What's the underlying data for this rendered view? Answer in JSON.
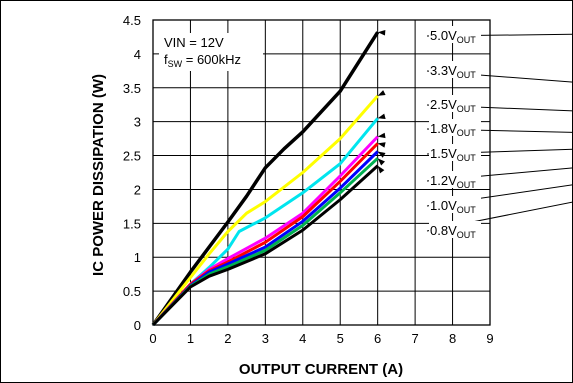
{
  "chart_data": {
    "type": "line",
    "xlabel": "OUTPUT CURRENT (A)",
    "ylabel": "IC POWER DISSIPATION (W)",
    "xlim": [
      0,
      9
    ],
    "ylim": [
      0,
      4.5
    ],
    "x_ticks": [
      "0",
      "1",
      "2",
      "3",
      "4",
      "5",
      "6",
      "7",
      "8",
      "9"
    ],
    "y_ticks": [
      "0",
      "0.5",
      "1",
      "1.5",
      "2",
      "2.5",
      "3",
      "3.5",
      "4",
      "4.5"
    ],
    "grid": true,
    "annotation": {
      "line1": "VIN = 12V",
      "line2_main": "f",
      "line2_sub": "SW",
      "line2_rest": " = 600kHz"
    },
    "series": [
      {
        "name": "5.0V",
        "sub": "OUT",
        "color": "#000000",
        "x": [
          0,
          1,
          2,
          2.5,
          3,
          3.5,
          4,
          5,
          6
        ],
        "y": [
          0,
          0.78,
          1.52,
          1.9,
          2.32,
          2.6,
          2.85,
          3.45,
          4.32
        ]
      },
      {
        "name": "3.3V",
        "sub": "OUT",
        "color": "#ffff00",
        "x": [
          0,
          1,
          1.5,
          2,
          2.5,
          3,
          4,
          5,
          6
        ],
        "y": [
          0,
          0.7,
          1.05,
          1.38,
          1.65,
          1.82,
          2.25,
          2.75,
          3.38
        ]
      },
      {
        "name": "2.5V",
        "sub": "OUT",
        "color": "#00e5ee",
        "x": [
          0,
          1,
          1.5,
          2,
          2.3,
          3,
          4,
          5,
          6
        ],
        "y": [
          0,
          0.6,
          0.85,
          1.12,
          1.38,
          1.58,
          1.95,
          2.38,
          3.05
        ]
      },
      {
        "name": "1.8V",
        "sub": "OUT",
        "color": "#ff00ff",
        "x": [
          0,
          1,
          1.5,
          2,
          3,
          4,
          5,
          6
        ],
        "y": [
          0,
          0.6,
          0.82,
          0.98,
          1.28,
          1.65,
          2.2,
          2.78
        ]
      },
      {
        "name": "1.5V",
        "sub": "OUT",
        "color": "#ff0000",
        "x": [
          0,
          1,
          1.5,
          2,
          3,
          4,
          5,
          6
        ],
        "y": [
          0,
          0.6,
          0.8,
          0.93,
          1.22,
          1.6,
          2.12,
          2.68
        ]
      },
      {
        "name": "1.2V",
        "sub": "OUT",
        "color": "#0000ff",
        "x": [
          0,
          1,
          1.5,
          2,
          3,
          4,
          5,
          6
        ],
        "y": [
          0,
          0.58,
          0.78,
          0.9,
          1.15,
          1.53,
          2.02,
          2.56
        ]
      },
      {
        "name": "1.0V",
        "sub": "OUT",
        "color": "#00b050",
        "x": [
          0,
          1,
          1.5,
          2,
          3,
          4,
          5,
          6
        ],
        "y": [
          0,
          0.57,
          0.75,
          0.86,
          1.1,
          1.47,
          1.95,
          2.46
        ]
      },
      {
        "name": "0.8V",
        "sub": "OUT",
        "color": "#000000",
        "x": [
          0,
          1,
          1.5,
          2,
          3,
          4,
          5,
          6
        ],
        "y": [
          0,
          0.56,
          0.72,
          0.82,
          1.05,
          1.4,
          1.85,
          2.35
        ]
      }
    ]
  }
}
